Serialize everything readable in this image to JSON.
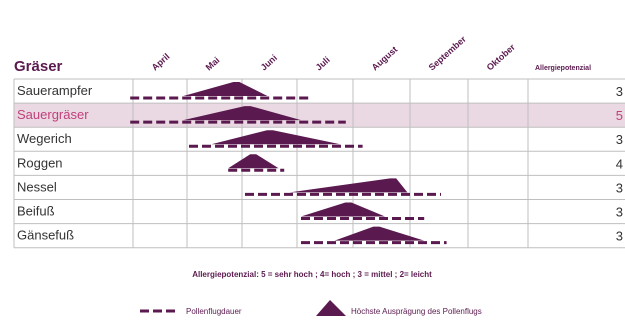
{
  "colors": {
    "accent": "#5b1a4f",
    "highlight_row": "#ead8e3",
    "border": "#bfbfbf",
    "text": "#333333",
    "highlight_text": "#c0407a"
  },
  "chart_data": {
    "type": "table",
    "title": "Gräser",
    "score_header": "Allergiepotenzial",
    "months": [
      "April",
      "Mai",
      "Juni",
      "Juli",
      "August",
      "September",
      "Oktober"
    ],
    "rows": [
      {
        "plant": "Sauerampfer",
        "score": 3,
        "dash": [
          -0.05,
          3.2
        ],
        "peak": {
          "start": 0.9,
          "peak": 1.9,
          "end": 2.4
        },
        "highlight": false
      },
      {
        "plant": "Sauergräser",
        "score": 5,
        "dash": [
          -0.05,
          3.8
        ],
        "peak": {
          "start": 0.9,
          "peak": 2.1,
          "end": 3.0
        },
        "highlight": true
      },
      {
        "plant": "Wegerich",
        "score": 3,
        "dash": [
          1.0,
          4.1
        ],
        "peak": {
          "start": 1.4,
          "peak": 2.5,
          "end": 3.7
        },
        "highlight": false
      },
      {
        "plant": "Roggen",
        "score": 4,
        "dash": [
          1.7,
          2.7
        ],
        "peak": {
          "start": 1.7,
          "peak": 2.2,
          "end": 2.6
        },
        "highlight": false
      },
      {
        "plant": "Nessel",
        "score": 3,
        "dash": [
          2.0,
          5.5
        ],
        "peak": {
          "start": 2.8,
          "peak": 4.7,
          "end": 4.9
        },
        "highlight": false
      },
      {
        "plant": "Beifuß",
        "score": 3,
        "dash": [
          3.0,
          5.2
        ],
        "peak": {
          "start": 3.0,
          "peak": 3.9,
          "end": 4.5
        },
        "highlight": false
      },
      {
        "plant": "Gänsefuß",
        "score": 3,
        "dash": [
          3.0,
          5.6
        ],
        "peak": {
          "start": 3.6,
          "peak": 4.4,
          "end": 5.2
        },
        "highlight": false
      }
    ],
    "scale_text": "Allergiepotenzial: 5 = sehr hoch ; 4= hoch ; 3 = mittel ; 2= leicht",
    "legend": {
      "dash_label": "Pollenflugdauer",
      "peak_label": "Höchste Ausprägung des Pollenflugs"
    }
  }
}
